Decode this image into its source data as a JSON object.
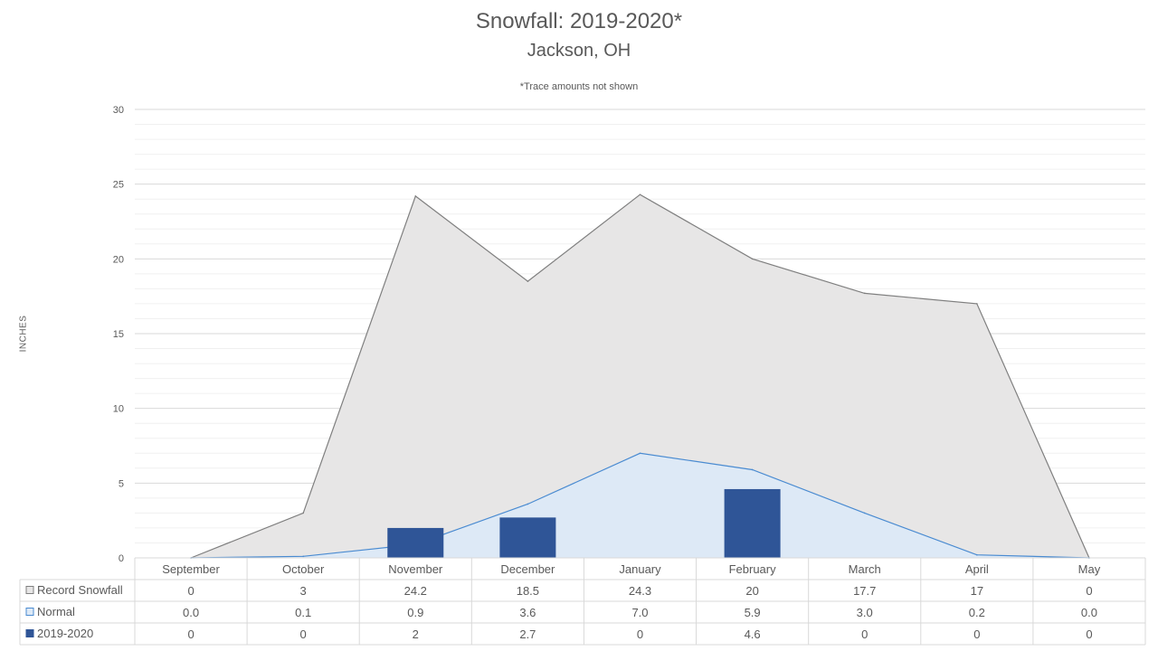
{
  "chart_data": {
    "type": "bar",
    "title": "Snowfall: 2019-2020*",
    "subtitle": "Jackson, OH",
    "note": "*Trace amounts not shown",
    "xlabel": "",
    "ylabel": "INCHES",
    "ylim": [
      0,
      30
    ],
    "yticks": [
      "0",
      "5",
      "10",
      "15",
      "20",
      "25",
      "30"
    ],
    "grid": true,
    "legend": "data-table",
    "categories": [
      "September",
      "October",
      "November",
      "December",
      "January",
      "February",
      "March",
      "April",
      "May"
    ],
    "series": [
      {
        "name": "Record Snowfall",
        "render": "area",
        "color": "#e7e6e6",
        "line_color": "#7f7f7f",
        "values": [
          0,
          3,
          24.2,
          18.5,
          24.3,
          20,
          17.7,
          17,
          0
        ],
        "labels": [
          "0",
          "3",
          "24.2",
          "18.5",
          "24.3",
          "20",
          "17.7",
          "17",
          "0"
        ]
      },
      {
        "name": "Normal",
        "render": "area",
        "color": "#dde9f6",
        "line_color": "#4a8bd1",
        "values": [
          0.0,
          0.1,
          0.9,
          3.6,
          7.0,
          5.9,
          3.0,
          0.2,
          0.0
        ],
        "labels": [
          "0.0",
          "0.1",
          "0.9",
          "3.6",
          "7.0",
          "5.9",
          "3.0",
          "0.2",
          "0.0"
        ]
      },
      {
        "name": "2019-2020",
        "render": "bar",
        "color": "#2f5597",
        "values": [
          0,
          0,
          2,
          2.7,
          0,
          4.6,
          0,
          0,
          0
        ],
        "labels": [
          "0",
          "0",
          "2",
          "2.7",
          "0",
          "4.6",
          "0",
          "0",
          "0"
        ]
      }
    ]
  }
}
